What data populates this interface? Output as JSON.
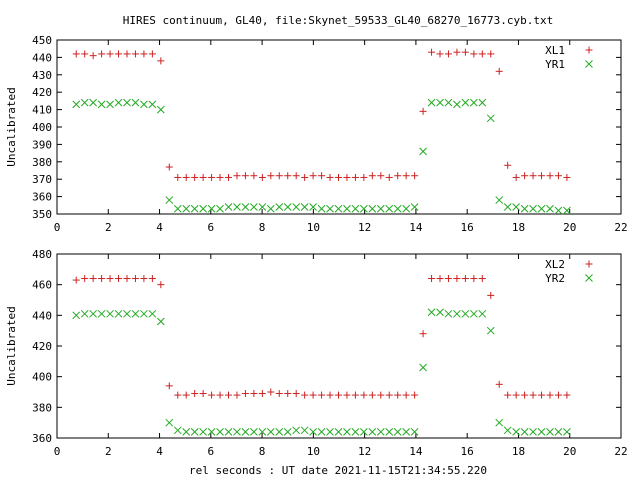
{
  "title": "HIRES continuum, GL40, file:Skynet_59533_GL40_68270_16773.cyb.txt",
  "xlabel": "rel seconds : UT date 2021-11-15T21:34:55.220",
  "chart_data": [
    {
      "type": "scatter",
      "title": "HIRES continuum, GL40, file:Skynet_59533_GL40_68270_16773.cyb.txt",
      "xlabel": "",
      "ylabel": "Uncalibrated",
      "xlim": [
        0,
        22
      ],
      "ylim": [
        350,
        450
      ],
      "xticks": [
        0,
        2,
        4,
        6,
        8,
        10,
        12,
        14,
        16,
        18,
        20,
        22
      ],
      "yticks": [
        350,
        360,
        370,
        380,
        390,
        400,
        410,
        420,
        430,
        440,
        450
      ],
      "grid": false,
      "legend": "top-right",
      "x": [
        0.75,
        1.08,
        1.41,
        1.74,
        2.07,
        2.4,
        2.73,
        3.06,
        3.39,
        3.72,
        4.05,
        4.38,
        4.71,
        5.04,
        5.37,
        5.7,
        6.03,
        6.36,
        6.69,
        7.02,
        7.35,
        7.68,
        8.01,
        8.34,
        8.67,
        9.0,
        9.33,
        9.66,
        9.99,
        10.32,
        10.65,
        10.98,
        11.31,
        11.64,
        11.97,
        12.3,
        12.63,
        12.96,
        13.29,
        13.62,
        13.95,
        14.28,
        14.61,
        14.94,
        15.27,
        15.6,
        15.93,
        16.26,
        16.59,
        16.92,
        17.25,
        17.58,
        17.91,
        18.24,
        18.57,
        18.9,
        19.23,
        19.56,
        19.89
      ],
      "series": [
        {
          "name": "XL1",
          "marker": "plus",
          "color": "#cc2222",
          "values": [
            442,
            442,
            441,
            442,
            442,
            442,
            442,
            442,
            442,
            442,
            438,
            377,
            371,
            371,
            371,
            371,
            371,
            371,
            371,
            372,
            372,
            372,
            371,
            372,
            372,
            372,
            372,
            371,
            372,
            372,
            371,
            371,
            371,
            371,
            371,
            372,
            372,
            371,
            372,
            372,
            372,
            409,
            443,
            442,
            442,
            443,
            443,
            442,
            442,
            442,
            432,
            378,
            371,
            372,
            372,
            372,
            372,
            372,
            371
          ]
        },
        {
          "name": "YR1",
          "marker": "cross",
          "color": "#22aa22",
          "values": [
            413,
            414,
            414,
            413,
            413,
            414,
            414,
            414,
            413,
            413,
            410,
            358,
            353,
            353,
            353,
            353,
            353,
            353,
            354,
            354,
            354,
            354,
            354,
            353,
            354,
            354,
            354,
            354,
            354,
            353,
            353,
            353,
            353,
            353,
            353,
            353,
            353,
            353,
            353,
            353,
            354,
            386,
            414,
            414,
            414,
            413,
            414,
            414,
            414,
            405,
            358,
            354,
            354,
            353,
            353,
            353,
            353,
            352,
            352
          ]
        }
      ]
    },
    {
      "type": "scatter",
      "title": "",
      "xlabel": "rel seconds : UT date 2021-11-15T21:34:55.220",
      "ylabel": "Uncalibrated",
      "xlim": [
        0,
        22
      ],
      "ylim": [
        360,
        480
      ],
      "xticks": [
        0,
        2,
        4,
        6,
        8,
        10,
        12,
        14,
        16,
        18,
        20,
        22
      ],
      "yticks": [
        360,
        380,
        400,
        420,
        440,
        460,
        480
      ],
      "grid": false,
      "legend": "top-right",
      "x": [
        0.75,
        1.08,
        1.41,
        1.74,
        2.07,
        2.4,
        2.73,
        3.06,
        3.39,
        3.72,
        4.05,
        4.38,
        4.71,
        5.04,
        5.37,
        5.7,
        6.03,
        6.36,
        6.69,
        7.02,
        7.35,
        7.68,
        8.01,
        8.34,
        8.67,
        9.0,
        9.33,
        9.66,
        9.99,
        10.32,
        10.65,
        10.98,
        11.31,
        11.64,
        11.97,
        12.3,
        12.63,
        12.96,
        13.29,
        13.62,
        13.95,
        14.28,
        14.61,
        14.94,
        15.27,
        15.6,
        15.93,
        16.26,
        16.59,
        16.92,
        17.25,
        17.58,
        17.91,
        18.24,
        18.57,
        18.9,
        19.23,
        19.56,
        19.89
      ],
      "series": [
        {
          "name": "XL2",
          "marker": "plus",
          "color": "#cc2222",
          "values": [
            463,
            464,
            464,
            464,
            464,
            464,
            464,
            464,
            464,
            464,
            460,
            394,
            388,
            388,
            389,
            389,
            388,
            388,
            388,
            388,
            389,
            389,
            389,
            390,
            389,
            389,
            389,
            388,
            388,
            388,
            388,
            388,
            388,
            388,
            388,
            388,
            388,
            388,
            388,
            388,
            388,
            428,
            464,
            464,
            464,
            464,
            464,
            464,
            464,
            453,
            395,
            388,
            388,
            388,
            388,
            388,
            388,
            388,
            388
          ]
        },
        {
          "name": "YR2",
          "marker": "cross",
          "color": "#22aa22",
          "values": [
            440,
            441,
            441,
            441,
            441,
            441,
            441,
            441,
            441,
            441,
            436,
            370,
            365,
            364,
            364,
            364,
            364,
            364,
            364,
            364,
            364,
            364,
            364,
            364,
            364,
            364,
            365,
            365,
            364,
            364,
            364,
            364,
            364,
            364,
            364,
            364,
            364,
            364,
            364,
            364,
            364,
            406,
            442,
            442,
            441,
            441,
            441,
            441,
            441,
            430,
            370,
            365,
            364,
            364,
            364,
            364,
            364,
            364,
            364
          ]
        }
      ]
    }
  ]
}
